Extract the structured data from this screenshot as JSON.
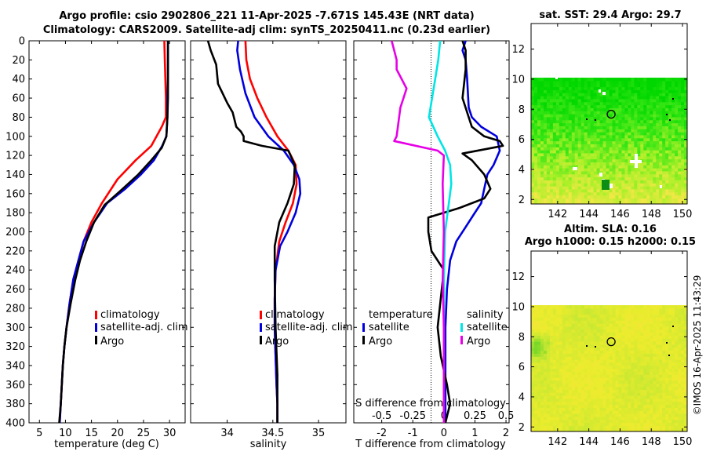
{
  "titles": {
    "line1": "Argo profile: csio 2902806_221 11-Apr-2025 -7.671S 145.43E (NRT data)",
    "line2": "Climatology: CARS2009. Satellite-adj clim: synTS_20250411.nc (0.23d earlier)",
    "sst_title": "sat. SST: 29.4 Argo: 29.7",
    "sla_title1": "Altim. SLA: 0.16",
    "sla_title2": "Argo h1000: 0.15 h2000: 0.15",
    "credit": "©IMOS 16-Apr-2025 11:43:29"
  },
  "colors": {
    "climatology": "#ff0000",
    "satellite": "#0000dd",
    "argo": "#000000",
    "salinity_satellite": "#00e5e5",
    "salinity_argo": "#e600e6"
  },
  "chart_data": [
    {
      "type": "line",
      "id": "temperature",
      "xlabel": "temperature (deg C)",
      "ylabel": "",
      "xlim": [
        3,
        33
      ],
      "ylim": [
        400,
        0
      ],
      "xticks": [
        5,
        10,
        15,
        20,
        25,
        30
      ],
      "yticks": [
        0,
        20,
        40,
        60,
        80,
        100,
        120,
        140,
        160,
        180,
        200,
        220,
        240,
        260,
        280,
        300,
        320,
        340,
        360,
        380,
        400
      ],
      "legend": [
        "climatology",
        "satellite-adj. clim",
        "Argo"
      ],
      "series": [
        {
          "name": "climatology",
          "color_key": "climatology",
          "x": [
            29,
            29.1,
            29.2,
            29.3,
            29.3,
            28.5,
            26.5,
            23.5,
            20,
            17,
            15,
            13.5,
            12.5,
            11.5,
            10.8,
            10.2,
            9.8,
            9.5,
            9.3,
            9.1,
            8.9
          ],
          "y": [
            0,
            20,
            40,
            60,
            80,
            90,
            110,
            125,
            145,
            170,
            190,
            210,
            230,
            250,
            275,
            300,
            320,
            340,
            360,
            380,
            400
          ]
        },
        {
          "name": "satellite-adj. clim",
          "color_key": "satellite",
          "x": [
            29.7,
            29.7,
            29.7,
            29.6,
            29.6,
            29.4,
            28.6,
            27,
            24.5,
            21.5,
            18,
            15.5,
            13.5,
            12.5,
            11.5,
            10.8,
            10.2,
            9.8,
            9.5,
            9.3,
            9.1,
            8.9
          ],
          "y": [
            0,
            20,
            40,
            60,
            80,
            100,
            110,
            125,
            140,
            155,
            170,
            190,
            210,
            230,
            250,
            275,
            300,
            320,
            340,
            360,
            380,
            400
          ]
        },
        {
          "name": "Argo",
          "color_key": "argo",
          "x": [
            29.7,
            29.7,
            29.7,
            29.7,
            29.6,
            29.4,
            28.5,
            26.5,
            24,
            21,
            17.5,
            15.5,
            14,
            12.8,
            11.9,
            11,
            10.2,
            9.8,
            9.5,
            9.3,
            9.1,
            8.8
          ],
          "y": [
            0,
            20,
            40,
            60,
            80,
            100,
            112,
            125,
            140,
            155,
            172,
            190,
            210,
            230,
            250,
            275,
            300,
            320,
            340,
            360,
            380,
            400
          ]
        }
      ]
    },
    {
      "type": "line",
      "id": "salinity",
      "xlabel": "salinity",
      "ylabel": "",
      "xlim": [
        33.6,
        35.3
      ],
      "ylim": [
        400,
        0
      ],
      "xticks": [
        34,
        34.5,
        35
      ],
      "legend": [
        "climatology",
        "satellite-adj. clim",
        "Argo"
      ],
      "series": [
        {
          "name": "climatology",
          "color_key": "climatology",
          "x": [
            34.2,
            34.21,
            34.25,
            34.33,
            34.43,
            34.55,
            34.67,
            34.75,
            34.76,
            34.72,
            34.64,
            34.57,
            34.53,
            34.52,
            34.52,
            34.53,
            34.54,
            34.55,
            34.55
          ],
          "y": [
            0,
            20,
            40,
            60,
            80,
            100,
            115,
            130,
            150,
            170,
            190,
            210,
            240,
            270,
            300,
            330,
            360,
            380,
            400
          ]
        },
        {
          "name": "satellite-adj. clim",
          "color_key": "satellite",
          "x": [
            34.12,
            34.11,
            34.14,
            34.2,
            34.3,
            34.45,
            34.62,
            34.73,
            34.79,
            34.8,
            34.75,
            34.66,
            34.58,
            34.53,
            34.52,
            34.52,
            34.53,
            34.54,
            34.55,
            34.55
          ],
          "y": [
            0,
            10,
            30,
            55,
            80,
            100,
            115,
            130,
            145,
            160,
            180,
            200,
            215,
            240,
            270,
            300,
            330,
            360,
            380,
            400
          ]
        },
        {
          "name": "Argo",
          "color_key": "argo",
          "x": [
            33.79,
            33.82,
            33.88,
            33.9,
            33.95,
            34.0,
            34.06,
            34.1,
            34.15,
            34.18,
            34.18,
            34.38,
            34.67,
            34.74,
            34.73,
            34.66,
            34.57,
            34.52,
            34.52,
            34.53,
            34.55,
            34.55
          ],
          "y": [
            0,
            10,
            25,
            45,
            55,
            65,
            75,
            90,
            95,
            100,
            105,
            110,
            115,
            130,
            150,
            170,
            190,
            215,
            250,
            300,
            350,
            400
          ]
        }
      ]
    },
    {
      "type": "line",
      "id": "difference",
      "xlabel": "T difference from climatology",
      "x2label": "S difference from climatology",
      "xlim": [
        -2.9,
        2.1
      ],
      "x2lim": [
        -0.725,
        0.525
      ],
      "ylim": [
        400,
        0
      ],
      "xticks": [
        -2,
        -1,
        0,
        1,
        2
      ],
      "x2ticks": [
        -0.5,
        -0.25,
        0,
        0.25,
        0.5
      ],
      "x2ticklabels": [
        "-0.5",
        "-0.25",
        "0",
        "0.25",
        "0.5"
      ],
      "legend_groups": [
        {
          "title": "temperature",
          "entries": [
            "satellite",
            "Argo"
          ]
        },
        {
          "title": "salinity",
          "entries": [
            "satellite",
            "Argo"
          ]
        }
      ],
      "series": [
        {
          "name": "temperature satellite",
          "color_key": "satellite",
          "x": [
            0.7,
            0.6,
            0.7,
            0.75,
            0.8,
            0.9,
            1.2,
            1.7,
            1.8,
            1.6,
            1.4,
            1.3,
            1.2,
            1.0,
            0.7,
            0.4,
            0.2,
            0.1,
            0.05,
            0.05,
            0.05
          ],
          "y": [
            0,
            10,
            20,
            40,
            70,
            80,
            90,
            100,
            115,
            130,
            140,
            155,
            170,
            180,
            195,
            210,
            230,
            260,
            300,
            350,
            400
          ]
        },
        {
          "name": "temperature Argo",
          "color_key": "argo",
          "x": [
            0.6,
            0.7,
            0.7,
            0.6,
            0.8,
            0.9,
            1.3,
            1.8,
            1.9,
            0.6,
            0.9,
            1.3,
            1.5,
            1.3,
            0.5,
            -0.5,
            -0.5,
            -0.4,
            0.0,
            -0.2,
            -0.1,
            0.1,
            0.2,
            0.05
          ],
          "y": [
            0,
            10,
            30,
            60,
            80,
            90,
            100,
            105,
            110,
            118,
            125,
            140,
            155,
            165,
            175,
            185,
            200,
            220,
            240,
            300,
            330,
            360,
            380,
            400
          ]
        },
        {
          "name": "salinity satellite",
          "color_key": "salinity_satellite",
          "x": [
            -0.03,
            -0.045,
            -0.07,
            -0.095,
            -0.12,
            -0.05,
            0.01,
            0.05,
            0.06,
            0.04,
            0.01,
            0.0,
            0.0,
            0.0,
            0.0
          ],
          "y": [
            0,
            20,
            40,
            60,
            80,
            100,
            115,
            130,
            150,
            170,
            200,
            250,
            300,
            350,
            400
          ]
        },
        {
          "name": "salinity Argo",
          "color_key": "salinity_argo",
          "x": [
            -0.42,
            -0.4,
            -0.38,
            -0.38,
            -0.3,
            -0.35,
            -0.38,
            -0.4,
            -0.05,
            0.0,
            -0.01,
            0.0,
            -0.01,
            0.0,
            0.0
          ],
          "y": [
            0,
            10,
            20,
            30,
            50,
            70,
            100,
            105,
            115,
            120,
            150,
            200,
            250,
            300,
            400
          ]
        }
      ]
    },
    {
      "type": "heatmap",
      "id": "sst_map",
      "title": "sat. SST: 29.4 Argo: 29.7",
      "xlim": [
        140.3,
        150.3
      ],
      "ylim": [
        1.7,
        13.7
      ],
      "xticks": [
        142,
        144,
        146,
        148,
        150
      ],
      "yticks": [
        2,
        4,
        6,
        8,
        10,
        12
      ],
      "data_ylim": [
        1.7,
        10
      ],
      "float_position": [
        145.43,
        7.67
      ],
      "colormap": "green-to-yellow"
    },
    {
      "type": "heatmap",
      "id": "sla_map",
      "title": "Altim. SLA: 0.16",
      "xlim": [
        140.3,
        150.3
      ],
      "ylim": [
        1.7,
        13.7
      ],
      "xticks": [
        142,
        144,
        146,
        148,
        150
      ],
      "yticks": [
        2,
        4,
        6,
        8,
        10,
        12
      ],
      "data_ylim": [
        1.7,
        10
      ],
      "float_position": [
        145.43,
        7.67
      ],
      "colormap": "yellow-green"
    }
  ]
}
